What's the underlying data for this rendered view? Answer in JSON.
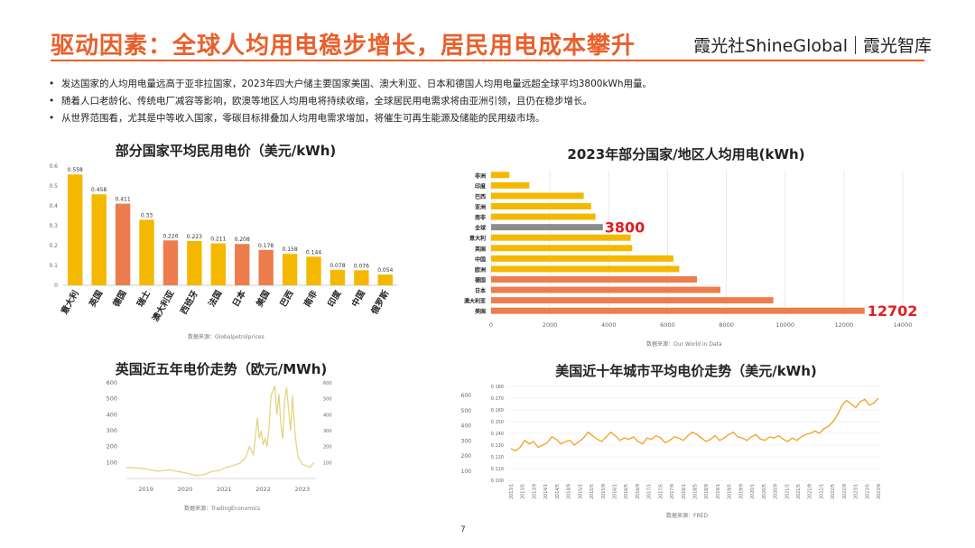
{
  "header": {
    "title": "驱动因素：全球人均用电稳步增长，居民用电成本攀升",
    "brand_left": "霞光社ShineGlobal",
    "brand_right": "霞光智库"
  },
  "bullets": [
    "发达国家的人均用电量远高于亚非拉国家，2023年四大户储主要国家美国、澳大利亚、日本和德国人均用电量远超全球平均3800kWh用量。",
    "随着人口老龄化、传统电厂减容等影响，欧澳等地区人均用电将持续收缩，全球居民用电需求将由亚洲引领，且仍在稳步增长。",
    "从世界范围看，尤其是中等收入国家，零碳目标排叠加人均用电需求增加，将催生可再生能源及储能的民用级市场。"
  ],
  "colors": {
    "accent": "#e8602c",
    "yellow": "#f5b800",
    "orange": "#ed7d4c",
    "gray": "#8c8c8c",
    "line": "#f0a020"
  },
  "chart_data": [
    {
      "type": "bar",
      "title": "部分国家平均民用电价（美元/kWh)",
      "categories": [
        "意大利",
        "英国",
        "德国",
        "瑞士",
        "澳大利亚",
        "西班牙",
        "法国",
        "日本",
        "美国",
        "巴西",
        "南非",
        "印度",
        "中国",
        "俄罗斯"
      ],
      "values": [
        0.558,
        0.458,
        0.411,
        0.33,
        0.226,
        0.223,
        0.211,
        0.208,
        0.178,
        0.158,
        0.144,
        0.078,
        0.076,
        0.054
      ],
      "colors": [
        "yellow",
        "yellow",
        "orange",
        "yellow",
        "orange",
        "yellow",
        "yellow",
        "orange",
        "orange",
        "yellow",
        "yellow",
        "yellow",
        "yellow",
        "yellow"
      ],
      "yticks": [
        "0",
        "0.1",
        "0.2",
        "0.3",
        "0.4",
        "0.5",
        "0.6"
      ],
      "ylim": [
        0,
        0.6
      ],
      "source": "数据来源：Globalpetrolprices"
    },
    {
      "type": "bar",
      "orientation": "horizontal",
      "title": "2023年部分国家/地区人均用电(kWh)",
      "categories": [
        "非洲",
        "印度",
        "巴西",
        "亚洲",
        "南非",
        "全球",
        "意大利",
        "英国",
        "中国",
        "欧洲",
        "德国",
        "日本",
        "澳大利亚",
        "美国"
      ],
      "values": [
        620,
        1300,
        3150,
        3400,
        3550,
        3800,
        4750,
        4800,
        6200,
        6400,
        7000,
        7800,
        9600,
        12702
      ],
      "colors": [
        "yellow",
        "yellow",
        "yellow",
        "yellow",
        "yellow",
        "gray",
        "yellow",
        "yellow",
        "yellow",
        "yellow",
        "orange",
        "orange",
        "orange",
        "orange"
      ],
      "highlight_labels": [
        "3800",
        "12702"
      ],
      "xticks": [
        "0",
        "2000",
        "4000",
        "6000",
        "8000",
        "10000",
        "12000",
        "14000"
      ],
      "xlim": [
        0,
        14000
      ],
      "source": "数据来源：Our World in Data"
    },
    {
      "type": "line",
      "title": "英国近五年电价走势（欧元/MWh)",
      "x": [
        2018.5,
        2018.8,
        2019.0,
        2019.3,
        2019.6,
        2019.9,
        2020.1,
        2020.3,
        2020.5,
        2020.7,
        2020.9,
        2021.0,
        2021.2,
        2021.4,
        2021.55,
        2021.65,
        2021.75,
        2021.8,
        2021.85,
        2021.9,
        2021.95,
        2022.0,
        2022.05,
        2022.1,
        2022.15,
        2022.2,
        2022.3,
        2022.35,
        2022.4,
        2022.45,
        2022.5,
        2022.55,
        2022.6,
        2022.65,
        2022.7,
        2022.75,
        2022.8,
        2022.85,
        2022.9,
        2023.0,
        2023.1,
        2023.2,
        2023.3
      ],
      "y": [
        70,
        65,
        60,
        45,
        55,
        40,
        30,
        18,
        25,
        45,
        50,
        65,
        80,
        95,
        130,
        200,
        150,
        260,
        380,
        250,
        300,
        210,
        250,
        200,
        320,
        520,
        580,
        400,
        530,
        350,
        250,
        500,
        570,
        430,
        300,
        520,
        330,
        200,
        130,
        90,
        80,
        70,
        100
      ],
      "yticks_left": [
        "100",
        "200",
        "300",
        "400",
        "500",
        "600"
      ],
      "yticks_right": [
        "100",
        "200",
        "300",
        "400",
        "500",
        "600"
      ],
      "xticks": [
        "2019",
        "2020",
        "2021",
        "2022",
        "2023"
      ],
      "ylim": [
        0,
        600
      ],
      "source": "数据来源：TradingEconomics"
    },
    {
      "type": "line",
      "title": "美国近十年城市平均电价走势（美元/kWh)",
      "y": [
        0.127,
        0.125,
        0.128,
        0.134,
        0.131,
        0.133,
        0.128,
        0.13,
        0.132,
        0.137,
        0.135,
        0.131,
        0.133,
        0.134,
        0.13,
        0.133,
        0.136,
        0.141,
        0.138,
        0.135,
        0.133,
        0.137,
        0.141,
        0.138,
        0.134,
        0.136,
        0.135,
        0.137,
        0.133,
        0.131,
        0.136,
        0.135,
        0.138,
        0.136,
        0.132,
        0.134,
        0.137,
        0.136,
        0.134,
        0.138,
        0.141,
        0.139,
        0.136,
        0.133,
        0.135,
        0.138,
        0.134,
        0.136,
        0.139,
        0.141,
        0.137,
        0.136,
        0.134,
        0.137,
        0.139,
        0.135,
        0.134,
        0.137,
        0.136,
        0.138,
        0.135,
        0.133,
        0.136,
        0.134,
        0.137,
        0.139,
        0.14,
        0.142,
        0.14,
        0.144,
        0.146,
        0.15,
        0.156,
        0.164,
        0.168,
        0.165,
        0.162,
        0.167,
        0.169,
        0.164,
        0.166,
        0.17
      ],
      "yticks_left": [
        "100",
        "200",
        "300",
        "400",
        "500",
        "600"
      ],
      "yticks_right": [
        "0.100",
        "0.110",
        "0.120",
        "0.130",
        "0.140",
        "0.150",
        "0.160",
        "0.170",
        "0.180"
      ],
      "xticks": [
        "2013/1",
        "2013/5",
        "2013/9",
        "2014/1",
        "2014/5",
        "2014/9",
        "2015/1",
        "2015/5",
        "2015/9",
        "2016/1",
        "2016/5",
        "2016/9",
        "2017/1",
        "2017/5",
        "2017/9",
        "2018/1",
        "2018/5",
        "2018/9",
        "2019/1",
        "2019/5",
        "2019/9",
        "2020/1",
        "2020/5",
        "2020/9",
        "2021/1",
        "2021/5",
        "2021/9",
        "2022/1",
        "2022/5",
        "2022/9",
        "2023/1",
        "2023/5",
        "2023/9"
      ],
      "ylim": [
        0.1,
        0.18
      ],
      "source": "数据来源：FRED"
    }
  ],
  "page_number": "7"
}
